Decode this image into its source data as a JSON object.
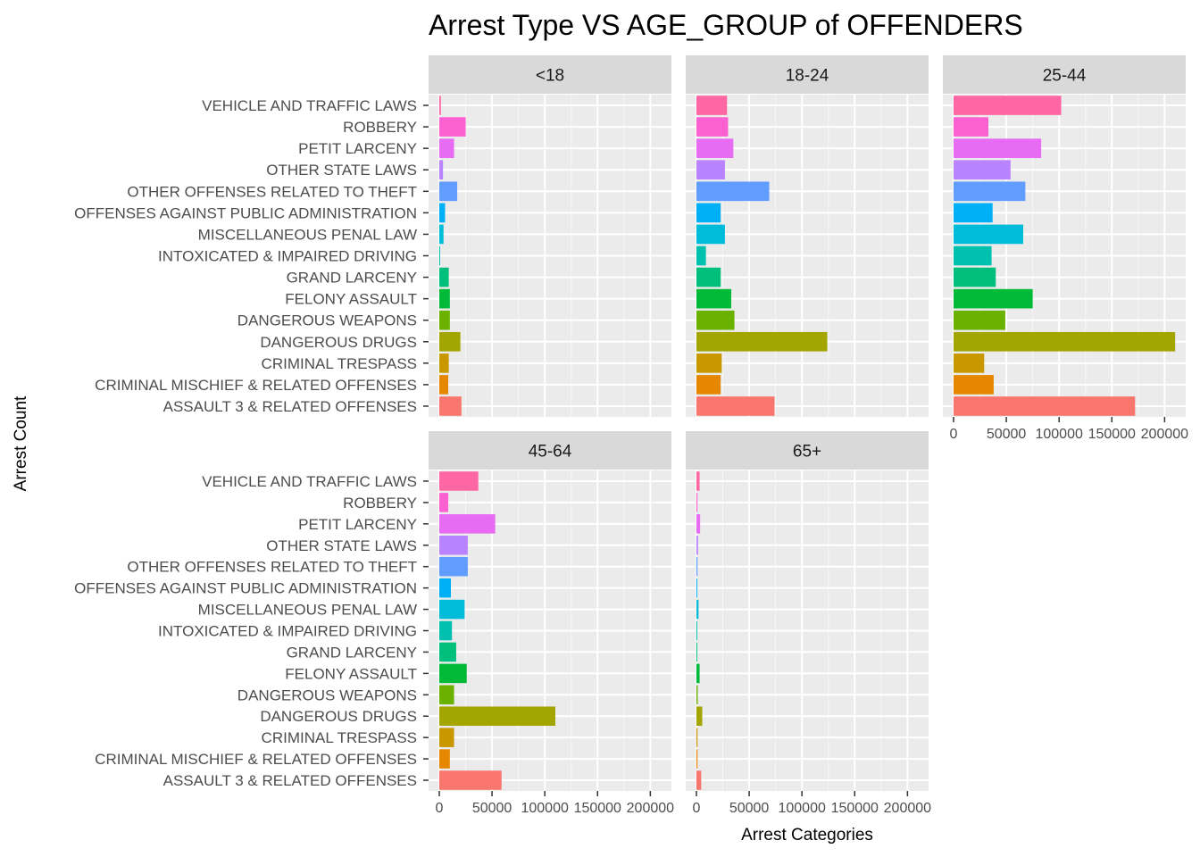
{
  "chart_data": {
    "type": "bar",
    "orientation": "horizontal",
    "title": "Arrest Type VS AGE_GROUP of OFFENDERS",
    "xlabel": "Arrest Categories",
    "ylabel": "Arrest Count",
    "xlim": [
      0,
      220000
    ],
    "x_ticks": [
      0,
      50000,
      100000,
      150000,
      200000
    ],
    "x_tick_labels": [
      "0",
      "50000",
      "100000",
      "150000",
      "200000"
    ],
    "grid": true,
    "legend": "none",
    "categories": [
      "ASSAULT 3 & RELATED OFFENSES",
      "CRIMINAL MISCHIEF & RELATED OFFENSES",
      "CRIMINAL TRESPASS",
      "DANGEROUS DRUGS",
      "DANGEROUS WEAPONS",
      "FELONY ASSAULT",
      "GRAND LARCENY",
      "INTOXICATED & IMPAIRED DRIVING",
      "MISCELLANEOUS PENAL LAW",
      "OFFENSES AGAINST PUBLIC ADMINISTRATION",
      "OTHER OFFENSES RELATED TO THEFT",
      "OTHER STATE LAWS",
      "PETIT LARCENY",
      "ROBBERY",
      "VEHICLE AND TRAFFIC LAWS"
    ],
    "colors": [
      "#F8766D",
      "#E58700",
      "#C99800",
      "#A3A500",
      "#6BB100",
      "#00BA38",
      "#00BF7D",
      "#00C0AF",
      "#00BCD8",
      "#00B0F6",
      "#619CFF",
      "#B983FF",
      "#E76BF3",
      "#FD61D1",
      "#FF67A4"
    ],
    "panels": [
      {
        "name": "<18",
        "values": [
          21000,
          8500,
          9000,
          20000,
          10000,
          10000,
          9000,
          800,
          4000,
          5500,
          17000,
          3500,
          14000,
          25000,
          1500
        ]
      },
      {
        "name": "18-24",
        "values": [
          74000,
          23000,
          24000,
          124000,
          36000,
          33000,
          23000,
          9000,
          27000,
          23000,
          69000,
          27000,
          35000,
          30000,
          29000
        ]
      },
      {
        "name": "25-44",
        "values": [
          172000,
          38000,
          29000,
          210000,
          49000,
          75000,
          40000,
          36000,
          66000,
          37000,
          68000,
          54000,
          83000,
          33000,
          102000
        ]
      },
      {
        "name": "45-64",
        "values": [
          59000,
          10000,
          14000,
          110000,
          14000,
          26000,
          16000,
          12000,
          24000,
          11000,
          27000,
          27000,
          53000,
          8500,
          37000
        ]
      },
      {
        "name": "65+",
        "values": [
          4500,
          1000,
          1000,
          5500,
          1200,
          3000,
          800,
          800,
          2000,
          800,
          1000,
          1500,
          3500,
          1000,
          3000
        ]
      }
    ]
  }
}
